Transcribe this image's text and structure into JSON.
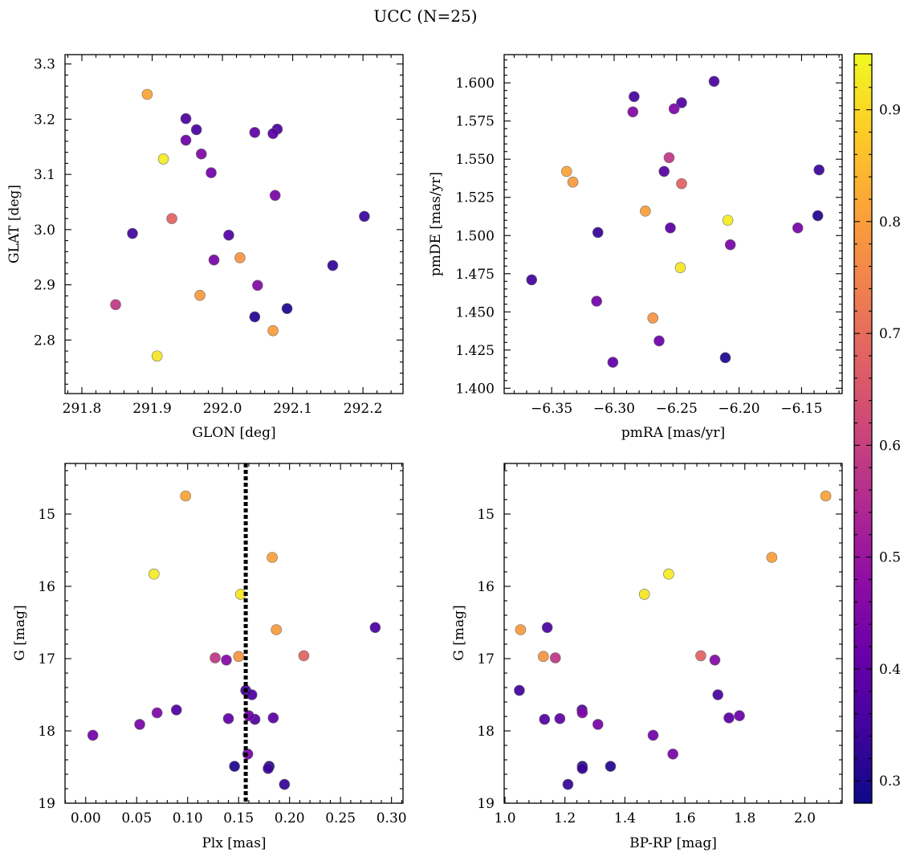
{
  "chart_data": {
    "title": "UCC (N=25)",
    "type": "scatter",
    "colorbar": {
      "range": [
        0.28,
        0.95
      ],
      "colormap": "plasma",
      "ticks": [
        0.3,
        0.4,
        0.5,
        0.6,
        0.7,
        0.8,
        0.9
      ],
      "tick_labels": [
        "0.3",
        "0.4",
        "0.5",
        "0.6",
        "0.7",
        "0.8",
        "0.9"
      ]
    },
    "stars": [
      {
        "glon": 291.893,
        "glat": 3.245,
        "pmra": -6.338,
        "pmde": 1.542,
        "plx": 0.098,
        "g": 14.75,
        "bprp": 2.07,
        "p": 0.81
      },
      {
        "glon": 291.916,
        "glat": 3.128,
        "pmra": -6.209,
        "pmde": 1.51,
        "plx": 0.067,
        "g": 15.83,
        "bprp": 1.546,
        "p": 0.93
      },
      {
        "glon": 291.907,
        "glat": 2.771,
        "pmra": -6.247,
        "pmde": 1.479,
        "plx": 0.152,
        "g": 16.11,
        "bprp": 1.465,
        "p": 0.92
      },
      {
        "glon": 292.072,
        "glat": 2.817,
        "pmra": -6.275,
        "pmde": 1.516,
        "plx": 0.183,
        "g": 15.6,
        "bprp": 1.89,
        "p": 0.8
      },
      {
        "glon": 291.968,
        "glat": 2.881,
        "pmra": -6.333,
        "pmde": 1.535,
        "plx": 0.187,
        "g": 16.6,
        "bprp": 1.052,
        "p": 0.79
      },
      {
        "glon": 292.025,
        "glat": 2.949,
        "pmra": -6.269,
        "pmde": 1.446,
        "plx": 0.15,
        "g": 16.97,
        "bprp": 1.128,
        "p": 0.78
      },
      {
        "glon": 291.928,
        "glat": 3.02,
        "pmra": -6.246,
        "pmde": 1.534,
        "plx": 0.214,
        "g": 16.96,
        "bprp": 1.653,
        "p": 0.68
      },
      {
        "glon": 291.848,
        "glat": 2.864,
        "pmra": -6.256,
        "pmde": 1.551,
        "plx": 0.127,
        "g": 16.99,
        "bprp": 1.168,
        "p": 0.58
      },
      {
        "glon": 292.05,
        "glat": 2.899,
        "pmra": -6.285,
        "pmde": 1.581,
        "plx": 0.138,
        "g": 17.02,
        "bprp": 1.7,
        "p": 0.46
      },
      {
        "glon": 291.97,
        "glat": 3.137,
        "pmra": -6.252,
        "pmde": 1.583,
        "plx": 0.07,
        "g": 17.75,
        "bprp": 1.258,
        "p": 0.45
      },
      {
        "glon": 291.988,
        "glat": 2.945,
        "pmra": -6.153,
        "pmde": 1.505,
        "plx": 0.053,
        "g": 17.91,
        "bprp": 1.31,
        "p": 0.44
      },
      {
        "glon": 292.075,
        "glat": 3.062,
        "pmra": -6.207,
        "pmde": 1.494,
        "plx": 0.159,
        "g": 18.32,
        "bprp": 1.56,
        "p": 0.44
      },
      {
        "glon": 291.984,
        "glat": 3.103,
        "pmra": -6.314,
        "pmde": 1.457,
        "plx": 0.007,
        "g": 18.06,
        "bprp": 1.494,
        "p": 0.43
      },
      {
        "glon": 291.948,
        "glat": 3.162,
        "pmra": -6.264,
        "pmde": 1.431,
        "plx": 0.16,
        "g": 17.79,
        "bprp": 1.782,
        "p": 0.42
      },
      {
        "glon": 292.046,
        "glat": 3.176,
        "pmra": -6.301,
        "pmde": 1.417,
        "plx": 0.14,
        "g": 17.83,
        "bprp": 1.183,
        "p": 0.4
      },
      {
        "glon": 292.072,
        "glat": 3.174,
        "pmra": -6.255,
        "pmde": 1.505,
        "plx": 0.184,
        "g": 17.82,
        "bprp": 1.747,
        "p": 0.39
      },
      {
        "glon": 292.009,
        "glat": 2.99,
        "pmra": -6.26,
        "pmde": 1.542,
        "plx": 0.166,
        "g": 17.84,
        "bprp": 1.132,
        "p": 0.38
      },
      {
        "glon": 291.948,
        "glat": 3.201,
        "pmra": -6.246,
        "pmde": 1.587,
        "plx": 0.089,
        "g": 17.71,
        "bprp": 1.257,
        "p": 0.37
      },
      {
        "glon": 292.078,
        "glat": 3.182,
        "pmra": -6.22,
        "pmde": 1.601,
        "plx": 0.163,
        "g": 17.5,
        "bprp": 1.71,
        "p": 0.36
      },
      {
        "glon": 291.963,
        "glat": 3.181,
        "pmra": -6.284,
        "pmde": 1.591,
        "plx": 0.284,
        "g": 16.57,
        "bprp": 1.141,
        "p": 0.36
      },
      {
        "glon": 291.872,
        "glat": 2.993,
        "pmra": -6.366,
        "pmde": 1.471,
        "plx": 0.157,
        "g": 17.44,
        "bprp": 1.048,
        "p": 0.35
      },
      {
        "glon": 292.202,
        "glat": 3.024,
        "pmra": -6.136,
        "pmde": 1.543,
        "plx": 0.179,
        "g": 18.52,
        "bprp": 1.258,
        "p": 0.34
      },
      {
        "glon": 292.157,
        "glat": 2.935,
        "pmra": -6.313,
        "pmde": 1.502,
        "plx": 0.195,
        "g": 18.74,
        "bprp": 1.21,
        "p": 0.33
      },
      {
        "glon": 292.046,
        "glat": 2.842,
        "pmra": -6.137,
        "pmde": 1.513,
        "plx": 0.18,
        "g": 18.49,
        "bprp": 1.352,
        "p": 0.31
      },
      {
        "glon": 292.092,
        "glat": 2.857,
        "pmra": -6.211,
        "pmde": 1.42,
        "plx": 0.146,
        "g": 18.49,
        "bprp": 1.258,
        "p": 0.3
      }
    ],
    "panels": [
      {
        "name": "glon-glat",
        "x": "glon",
        "y": "glat",
        "xlabel": "GLON [deg]",
        "ylabel": "GLAT [deg]",
        "xlim": [
          291.776,
          292.257
        ],
        "ylim": [
          2.703,
          3.317
        ],
        "invert_y": false,
        "xticks": [
          291.8,
          291.9,
          292.0,
          292.1,
          292.2
        ],
        "xtick_labels": [
          "291.8",
          "291.9",
          "292.0",
          "292.1",
          "292.2"
        ],
        "xminor_step": 0.02,
        "yticks": [
          2.8,
          2.9,
          3.0,
          3.1,
          3.2,
          3.3
        ],
        "ytick_labels": [
          "2.8",
          "2.9",
          "3.0",
          "3.1",
          "3.2",
          "3.3"
        ],
        "yminor_step": 0.02
      },
      {
        "name": "pmra-pmde",
        "x": "pmra",
        "y": "pmde",
        "xlabel": "pmRA [mas/yr]",
        "ylabel": "pmDE [mas/yr]",
        "xlim": [
          -6.388,
          -6.1175
        ],
        "ylim": [
          1.3965,
          1.6185
        ],
        "invert_y": false,
        "xticks": [
          -6.35,
          -6.3,
          -6.25,
          -6.2,
          -6.15
        ],
        "xtick_labels": [
          "−6.35",
          "−6.30",
          "−6.25",
          "−6.20",
          "−6.15"
        ],
        "xminor_step": 0.01,
        "yticks": [
          1.4,
          1.425,
          1.45,
          1.475,
          1.5,
          1.525,
          1.55,
          1.575,
          1.6
        ],
        "ytick_labels": [
          "1.400",
          "1.425",
          "1.450",
          "1.475",
          "1.500",
          "1.525",
          "1.550",
          "1.575",
          "1.600"
        ],
        "yminor_step": 0.005
      },
      {
        "name": "plx-g",
        "x": "plx",
        "y": "g",
        "xlabel": "Plx [mas]",
        "ylabel": "G [mag]",
        "xlim": [
          -0.0203,
          0.3113
        ],
        "ylim": [
          14.3,
          19.0
        ],
        "invert_y": true,
        "xticks": [
          0.0,
          0.05,
          0.1,
          0.15,
          0.2,
          0.25,
          0.3
        ],
        "xtick_labels": [
          "0.00",
          "0.05",
          "0.10",
          "0.15",
          "0.20",
          "0.25",
          "0.30"
        ],
        "xminor_step": 0.01,
        "yticks": [
          15,
          16,
          17,
          18,
          19
        ],
        "ytick_labels": [
          "15",
          "16",
          "17",
          "18",
          "19"
        ],
        "yminor_step": 0.2,
        "vline": {
          "x": 0.157,
          "style": "dotted"
        }
      },
      {
        "name": "bprp-g",
        "x": "bprp",
        "y": "g",
        "xlabel": "BP-RP [mag]",
        "ylabel": "G [mag]",
        "xlim": [
          0.9973,
          2.1245
        ],
        "ylim": [
          14.3,
          19.0
        ],
        "invert_y": true,
        "xticks": [
          1.0,
          1.2,
          1.4,
          1.6,
          1.8,
          2.0
        ],
        "xtick_labels": [
          "1.0",
          "1.2",
          "1.4",
          "1.6",
          "1.8",
          "2.0"
        ],
        "xminor_step": 0.04,
        "yticks": [
          15,
          16,
          17,
          18,
          19
        ],
        "ytick_labels": [
          "15",
          "16",
          "17",
          "18",
          "19"
        ],
        "yminor_step": 0.2
      }
    ]
  }
}
